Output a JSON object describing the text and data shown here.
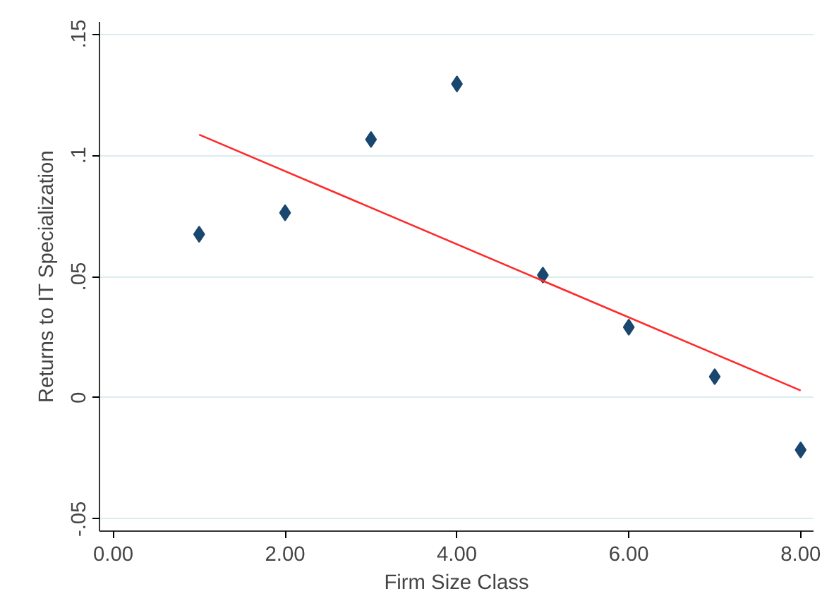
{
  "chart_data": {
    "type": "scatter",
    "xlabel": "Firm Size Class",
    "ylabel": "Returns to IT Specialization",
    "x": [
      1,
      2,
      3,
      4,
      5,
      6,
      7,
      8
    ],
    "series": [
      {
        "color": "#1a476f",
        "marker": "diamond",
        "values": [
          0.0674,
          0.0763,
          0.1065,
          0.1294,
          0.0506,
          0.0291,
          0.0087,
          -0.0215
        ]
      },
      {
        "type": "line",
        "color": "#ff2a2a",
        "x": [
          1,
          8
        ],
        "values": [
          0.1085,
          0.003
        ],
        "line_style": "solid"
      }
    ],
    "xlim": [
      -0.16,
      8.15
    ],
    "ylim": [
      -0.055,
      0.155
    ],
    "xticks": [
      {
        "value": 0,
        "label": "0.00"
      },
      {
        "value": 2,
        "label": "2.00"
      },
      {
        "value": 4,
        "label": "4.00"
      },
      {
        "value": 6,
        "label": "6.00"
      },
      {
        "value": 8,
        "label": "8.00"
      }
    ],
    "yticks": [
      {
        "value": -0.05,
        "label": "-.05"
      },
      {
        "value": 0,
        "label": "0"
      },
      {
        "value": 0.05,
        "label": ".05"
      },
      {
        "value": 0.1,
        "label": ".1"
      },
      {
        "value": 0.15,
        "label": ".15"
      }
    ],
    "grid": "y"
  }
}
